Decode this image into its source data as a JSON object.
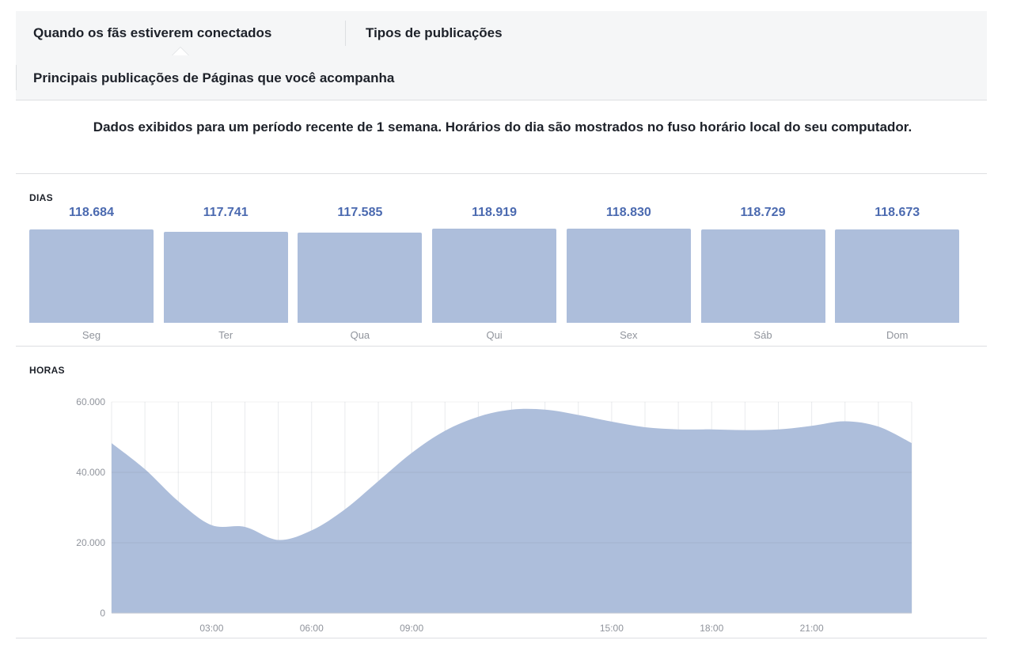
{
  "tabs": {
    "when_fans_online": "Quando os fãs estiverem conectados",
    "post_types": "Tipos de publicações",
    "top_posts": "Principais publicações de Páginas que você acompanha"
  },
  "notice": "Dados exibidos para um período recente de 1 semana. Horários do dia são mostrados no fuso horário local do seu computador.",
  "days_section": {
    "label": "DIAS"
  },
  "hours_section": {
    "label": "HORAS"
  },
  "colors": {
    "bar": "#adbedb",
    "value_text": "#4b6ab0",
    "axis_text": "#90949c"
  },
  "chart_data": [
    {
      "type": "bar",
      "categories": [
        "Seg",
        "Ter",
        "Qua",
        "Qui",
        "Sex",
        "Sáb",
        "Dom"
      ],
      "values": [
        118684,
        117741,
        117585,
        118919,
        118830,
        118729,
        118673
      ],
      "value_labels": [
        "118.684",
        "117.741",
        "117.585",
        "118.919",
        "118.830",
        "118.729",
        "118.673"
      ],
      "title": "DIAS"
    },
    {
      "type": "area",
      "title": "HORAS",
      "x": [
        0,
        1,
        2,
        3,
        4,
        5,
        6,
        7,
        8,
        9,
        10,
        11,
        12,
        13,
        14,
        15,
        16,
        17,
        18,
        19,
        20,
        21,
        22,
        23,
        24
      ],
      "values": [
        48300,
        40900,
        31800,
        25000,
        24500,
        20800,
        23500,
        29500,
        37500,
        45500,
        51800,
        55800,
        57800,
        57800,
        56300,
        54400,
        52800,
        52200,
        52200,
        52000,
        52200,
        53200,
        54500,
        53000,
        48300
      ],
      "xticks": [
        "03:00",
        "06:00",
        "09:00",
        "15:00",
        "18:00",
        "21:00"
      ],
      "xtick_values": [
        3,
        6,
        9,
        15,
        18,
        21
      ],
      "yticks": [
        "0",
        "20.000",
        "40.000",
        "60.000"
      ],
      "ytick_values": [
        0,
        20000,
        40000,
        60000
      ],
      "ylim": [
        0,
        60000
      ],
      "xlim": [
        0,
        24
      ],
      "grid": true
    }
  ]
}
